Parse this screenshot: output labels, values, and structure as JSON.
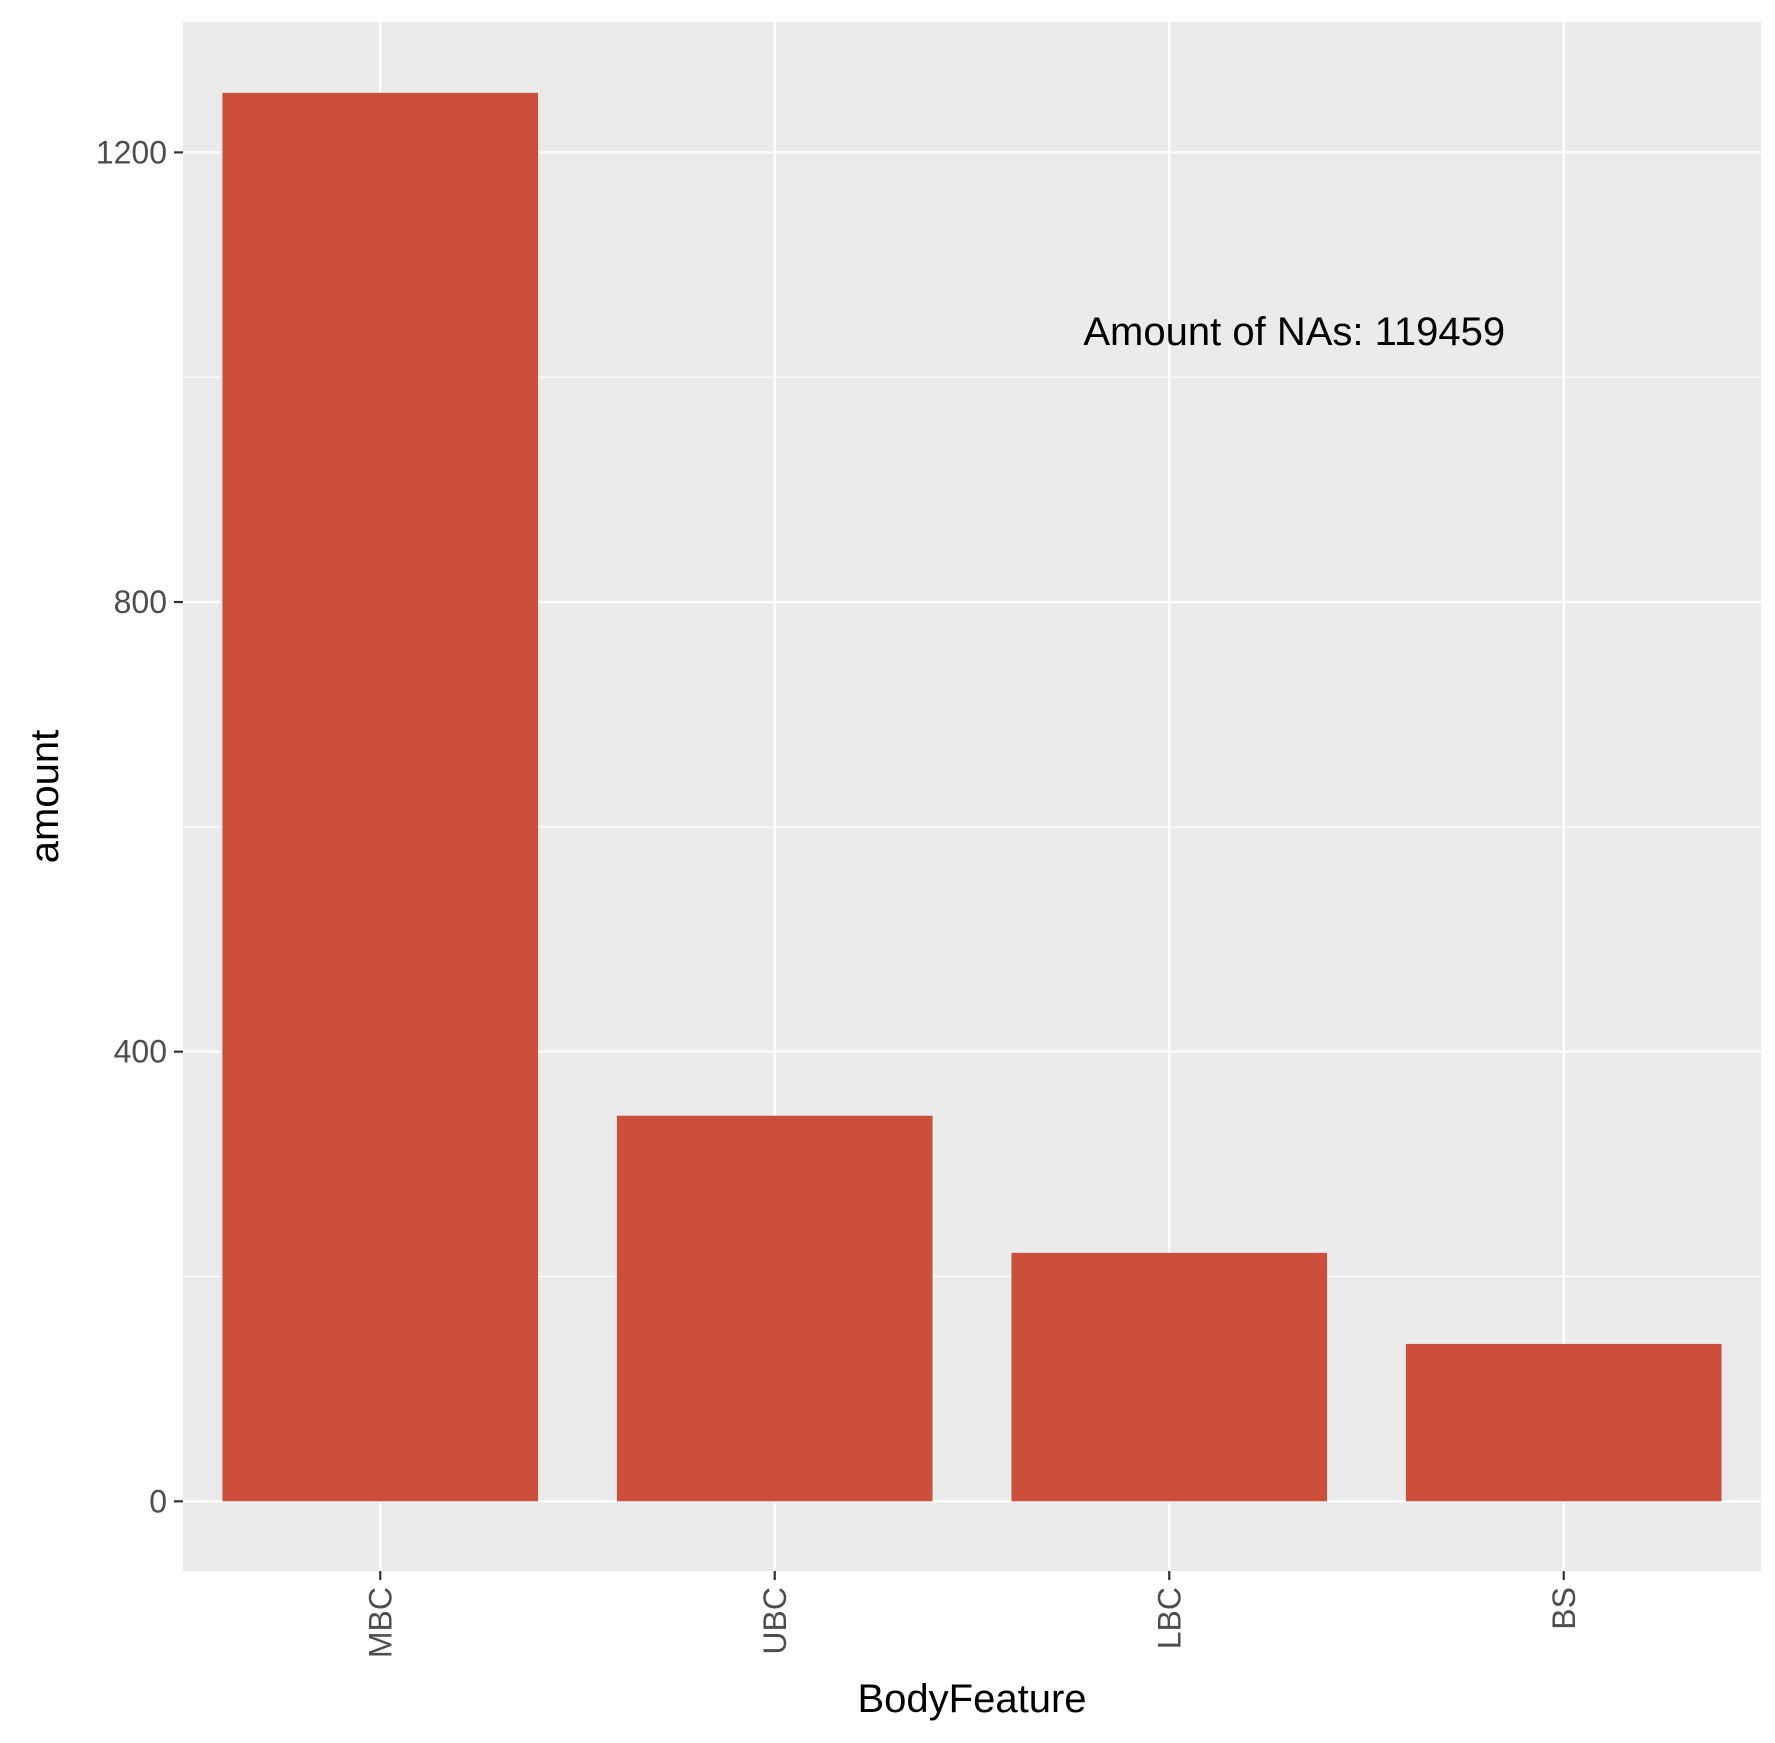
{
  "chart_data": {
    "type": "bar",
    "categories": [
      "MBC",
      "UBC",
      "LBC",
      "BS"
    ],
    "values": [
      1253,
      343,
      221,
      140
    ],
    "xlabel": "BodyFeature",
    "ylabel": "amount",
    "yticks": [
      0,
      400,
      800,
      1200
    ],
    "ylim": [
      -62,
      1316
    ],
    "grid": true,
    "legend": "none",
    "annotation": {
      "text": "Amount of NAs: 119459",
      "x": "LBC",
      "y": 1040
    },
    "colors": {
      "bar": "#CC4F3C",
      "panel_background": "#EBEBEB",
      "grid": "#FFFFFF"
    }
  }
}
